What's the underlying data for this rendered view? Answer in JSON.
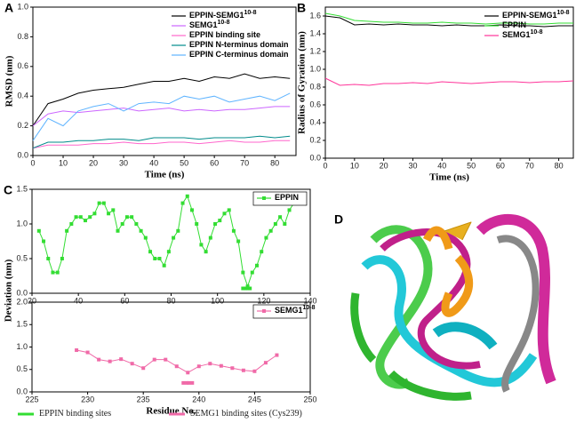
{
  "panel_d": {
    "label": "D"
  },
  "chart_data": [
    {
      "type": "line",
      "panel": "A",
      "xlabel": "Time (ns)",
      "ylabel": "RMSD (nm)",
      "legend": "upper right",
      "xlim": [
        0,
        87
      ],
      "xticks": [
        0,
        10,
        20,
        30,
        40,
        50,
        60,
        70,
        80
      ],
      "ylim": [
        0,
        1.0
      ],
      "yticks": [
        {
          "value": 0,
          "label": "0.0"
        },
        {
          "value": 0.2,
          "label": "0.2"
        },
        {
          "value": 0.4,
          "label": "0.4"
        },
        {
          "value": 0.6,
          "label": "0.6"
        },
        {
          "value": 0.8,
          "label": "0.8"
        },
        {
          "value": 1.0,
          "label": "1.0"
        }
      ],
      "x": [
        0,
        5,
        10,
        15,
        20,
        25,
        30,
        35,
        40,
        45,
        50,
        55,
        60,
        65,
        70,
        75,
        80,
        85
      ],
      "series": [
        {
          "name": "EPPIN-SEMG1",
          "name_sup": "10-8",
          "color": "#000000",
          "values": [
            0.2,
            0.35,
            0.38,
            0.42,
            0.44,
            0.45,
            0.46,
            0.48,
            0.5,
            0.5,
            0.52,
            0.5,
            0.53,
            0.52,
            0.55,
            0.52,
            0.53,
            0.52
          ]
        },
        {
          "name": "SEMG1",
          "name_sup": "10-8",
          "color": "#cc66ff",
          "values": [
            0.2,
            0.28,
            0.3,
            0.29,
            0.3,
            0.31,
            0.32,
            0.3,
            0.31,
            0.32,
            0.3,
            0.31,
            0.3,
            0.31,
            0.31,
            0.32,
            0.33,
            0.33
          ]
        },
        {
          "name": "EPPIN binding site",
          "color": "#ff66cc",
          "values": [
            0.05,
            0.07,
            0.07,
            0.07,
            0.08,
            0.08,
            0.09,
            0.08,
            0.08,
            0.09,
            0.09,
            0.08,
            0.09,
            0.1,
            0.09,
            0.09,
            0.1,
            0.1
          ]
        },
        {
          "name": "EPPIN N-terminus domain",
          "color": "#008b8b",
          "values": [
            0.05,
            0.09,
            0.09,
            0.1,
            0.1,
            0.11,
            0.11,
            0.1,
            0.12,
            0.12,
            0.12,
            0.11,
            0.12,
            0.12,
            0.12,
            0.13,
            0.12,
            0.13
          ]
        },
        {
          "name": "EPPIN C-terminus domain",
          "color": "#5fb4ff",
          "values": [
            0.1,
            0.25,
            0.2,
            0.3,
            0.33,
            0.35,
            0.3,
            0.35,
            0.36,
            0.35,
            0.4,
            0.38,
            0.4,
            0.36,
            0.38,
            0.4,
            0.37,
            0.42
          ]
        }
      ]
    },
    {
      "type": "line",
      "panel": "B",
      "xlabel": "Time (ns)",
      "ylabel": "Radius of Gyration (nm)",
      "legend": "upper right",
      "xlim": [
        0,
        85
      ],
      "xticks": [
        0,
        10,
        20,
        30,
        40,
        50,
        60,
        70,
        80
      ],
      "ylim": [
        0,
        1.7
      ],
      "yticks": [
        {
          "value": 0,
          "label": "0.0"
        },
        {
          "value": 0.2,
          "label": "0.2"
        },
        {
          "value": 0.4,
          "label": "0.4"
        },
        {
          "value": 0.6,
          "label": "0.6"
        },
        {
          "value": 0.8,
          "label": "0.8"
        },
        {
          "value": 1.0,
          "label": "1.0"
        },
        {
          "value": 1.2,
          "label": "1.2"
        },
        {
          "value": 1.4,
          "label": "1.4"
        },
        {
          "value": 1.6,
          "label": "1.6"
        }
      ],
      "x": [
        0,
        5,
        10,
        15,
        20,
        25,
        30,
        35,
        40,
        45,
        50,
        55,
        60,
        65,
        70,
        75,
        80,
        85
      ],
      "series": [
        {
          "name": "EPPIN-SEMG1",
          "name_sup": "10-8",
          "color": "#000000",
          "values": [
            1.6,
            1.58,
            1.5,
            1.51,
            1.5,
            1.51,
            1.5,
            1.5,
            1.49,
            1.5,
            1.49,
            1.49,
            1.5,
            1.49,
            1.49,
            1.48,
            1.49,
            1.49
          ]
        },
        {
          "name": "EPPIN",
          "color": "#33dd33",
          "values": [
            1.63,
            1.6,
            1.55,
            1.54,
            1.53,
            1.53,
            1.52,
            1.52,
            1.53,
            1.52,
            1.52,
            1.51,
            1.52,
            1.52,
            1.51,
            1.51,
            1.52,
            1.52
          ]
        },
        {
          "name": "SEMG1",
          "name_sup": "10-8",
          "color": "#ff3399",
          "values": [
            0.9,
            0.82,
            0.83,
            0.82,
            0.84,
            0.84,
            0.85,
            0.84,
            0.86,
            0.85,
            0.84,
            0.85,
            0.86,
            0.86,
            0.85,
            0.86,
            0.86,
            0.87
          ]
        }
      ]
    },
    {
      "type": "line",
      "panel": "C",
      "ylabel": "Deviation (nm)",
      "legend": "upper right",
      "xlim": [
        20,
        140
      ],
      "xticks": [
        20,
        40,
        60,
        80,
        100,
        120,
        140
      ],
      "ylim": [
        0,
        1.5
      ],
      "yticks": [
        {
          "value": 0,
          "label": "0.0"
        },
        {
          "value": 0.5,
          "label": "0.5"
        },
        {
          "value": 1.0,
          "label": "1.0"
        },
        {
          "value": 1.5,
          "label": "1.5"
        }
      ],
      "series": [
        {
          "name": "EPPIN",
          "color": "#33dd33",
          "marker": "square",
          "x": [
            23,
            25,
            27,
            29,
            31,
            33,
            35,
            37,
            39,
            41,
            43,
            45,
            47,
            49,
            51,
            53,
            55,
            57,
            59,
            61,
            63,
            65,
            67,
            69,
            71,
            73,
            75,
            77,
            79,
            81,
            83,
            85,
            87,
            89,
            91,
            93,
            95,
            97,
            99,
            101,
            103,
            105,
            107,
            109,
            111,
            113,
            115,
            117,
            119,
            121,
            123,
            125,
            127,
            129,
            131,
            133
          ],
          "values": [
            0.9,
            0.75,
            0.5,
            0.3,
            0.3,
            0.5,
            0.9,
            1.0,
            1.1,
            1.1,
            1.05,
            1.1,
            1.15,
            1.3,
            1.3,
            1.15,
            1.2,
            0.9,
            1.0,
            1.1,
            1.1,
            1.0,
            0.9,
            0.8,
            0.6,
            0.5,
            0.5,
            0.4,
            0.6,
            0.8,
            0.9,
            1.3,
            1.4,
            1.2,
            1.0,
            0.7,
            0.6,
            0.8,
            1.0,
            1.05,
            1.15,
            1.2,
            0.9,
            0.75,
            0.3,
            0.1,
            0.3,
            0.4,
            0.6,
            0.8,
            0.9,
            1.0,
            1.1,
            1.0,
            1.2,
            1.3
          ]
        },
        {
          "name": "EPPIN binding sites",
          "color": "#33dd33",
          "marker": "square",
          "line": false,
          "legend": "bottom",
          "x": [
            111,
            112,
            113,
            114
          ],
          "values": [
            0.07,
            0.07,
            0.07,
            0.07
          ]
        }
      ]
    },
    {
      "type": "line",
      "xlabel": "Residue No.",
      "legend": "upper right",
      "xlim": [
        225,
        250
      ],
      "xticks": [
        225,
        230,
        235,
        240,
        245,
        250
      ],
      "ylim": [
        0,
        2.0
      ],
      "yticks": [
        {
          "value": 0,
          "label": "0.0"
        },
        {
          "value": 0.5,
          "label": "0.5"
        },
        {
          "value": 1.0,
          "label": "1.0"
        },
        {
          "value": 1.5,
          "label": "1.5"
        },
        {
          "value": 2.0,
          "label": "2.0"
        }
      ],
      "series": [
        {
          "name": "SEMG1",
          "name_sup": "10-8",
          "color": "#f06aa8",
          "marker": "square",
          "x": [
            229,
            230,
            231,
            232,
            233,
            234,
            235,
            236,
            237,
            238,
            239,
            240,
            241,
            242,
            243,
            244,
            245,
            246,
            247
          ],
          "values": [
            0.93,
            0.88,
            0.72,
            0.68,
            0.73,
            0.63,
            0.53,
            0.72,
            0.72,
            0.57,
            0.43,
            0.57,
            0.63,
            0.58,
            0.53,
            0.48,
            0.46,
            0.65,
            0.82
          ]
        },
        {
          "name": "SEMG1 binding sites (Cys239)",
          "color": "#f06aa8",
          "marker": "square",
          "line": false,
          "legend": "bottom",
          "x": [
            238.6,
            238.9,
            239.1,
            239.4
          ],
          "values": [
            0.2,
            0.2,
            0.2,
            0.2
          ]
        }
      ]
    }
  ]
}
